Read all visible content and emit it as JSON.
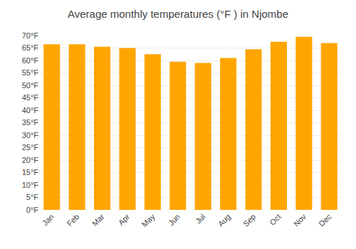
{
  "chart_data": {
    "type": "bar",
    "title": "Average monthly temperatures (°F ) in Njombe",
    "categories": [
      "Jan",
      "Feb",
      "Mar",
      "Apr",
      "May",
      "Jun",
      "Jul",
      "Aug",
      "Sep",
      "Oct",
      "Nov",
      "Dec"
    ],
    "values": [
      66.5,
      66.5,
      65.5,
      65.0,
      62.5,
      59.5,
      59.0,
      61.0,
      64.5,
      67.5,
      69.5,
      67.0
    ],
    "color": "#FFA500",
    "ylim": [
      0,
      70
    ],
    "yticks": [
      {
        "value": 0,
        "label": "0°F"
      },
      {
        "value": 5,
        "label": "5°F"
      },
      {
        "value": 10,
        "label": "10°F"
      },
      {
        "value": 15,
        "label": "15°F"
      },
      {
        "value": 20,
        "label": "20°F"
      },
      {
        "value": 25,
        "label": "25°F"
      },
      {
        "value": 30,
        "label": "30°F"
      },
      {
        "value": 35,
        "label": "35°F"
      },
      {
        "value": 40,
        "label": "40°F"
      },
      {
        "value": 45,
        "label": "45°F"
      },
      {
        "value": 50,
        "label": "50°F"
      },
      {
        "value": 55,
        "label": "55°F"
      },
      {
        "value": 60,
        "label": "60°F"
      },
      {
        "value": 65,
        "label": "65°F"
      },
      {
        "value": 70,
        "label": "70°F"
      }
    ],
    "grid": true
  }
}
